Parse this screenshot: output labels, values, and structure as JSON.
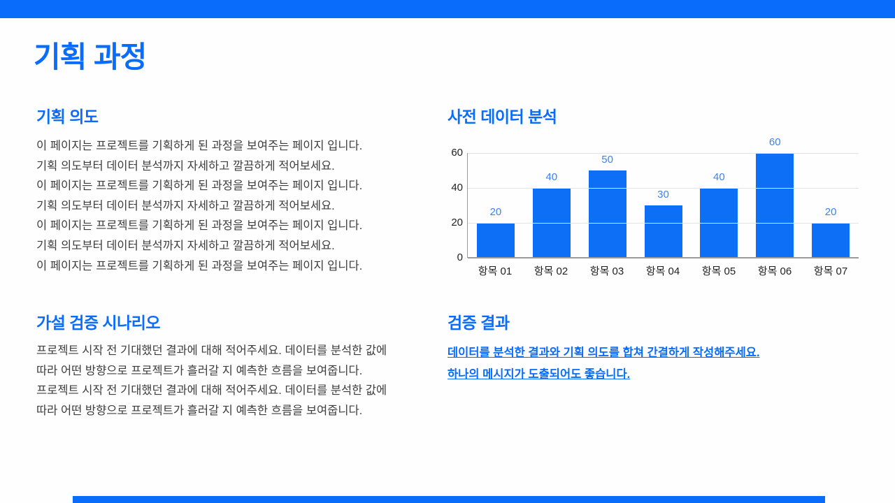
{
  "slide": {
    "title": "기획 과정"
  },
  "colors": {
    "accent": "#0a6cfa",
    "bar": "#0d6ef6",
    "value_label": "#3b82f4",
    "body_text": "#3d3d3d"
  },
  "sections": {
    "planning_intent": {
      "heading": "기획 의도",
      "lines": [
        "이 페이지는 프로젝트를 기획하게 된 과정을 보여주는 페이지 입니다.",
        "기획 의도부터 데이터 분석까지 자세하고 깔끔하게 적어보세요.",
        "이 페이지는 프로젝트를 기획하게 된 과정을 보여주는 페이지 입니다.",
        "기획 의도부터 데이터 분석까지 자세하고 깔끔하게 적어보세요.",
        "이 페이지는 프로젝트를 기획하게 된 과정을 보여주는 페이지 입니다.",
        "기획 의도부터 데이터 분석까지 자세하고 깔끔하게 적어보세요.",
        "이 페이지는 프로젝트를 기획하게 된 과정을 보여주는 페이지 입니다."
      ]
    },
    "data_analysis": {
      "heading": "사전 데이터 분석"
    },
    "hypothesis": {
      "heading": "가설 검증 시나리오",
      "lines": [
        "프로젝트 시작 전 기대했던 결과에 대해 적어주세요. 데이터를 분석한 값에",
        "따라 어떤 방향으로 프로젝트가 흘러갈 지 예측한 흐름을 보여줍니다.",
        "프로젝트 시작 전 기대했던 결과에 대해 적어주세요. 데이터를 분석한 값에",
        "따라 어떤 방향으로 프로젝트가 흘러갈 지 예측한 흐름을 보여줍니다."
      ]
    },
    "result": {
      "heading": "검증 결과",
      "links": [
        "데이터를 분석한 결과와 기획 의도를 합쳐 간결하게 작성해주세요.",
        "하나의 메시지가 도출되어도 좋습니다."
      ]
    }
  },
  "chart_data": {
    "type": "bar",
    "title": "사전 데이터 분석",
    "categories": [
      "항목 01",
      "항목 02",
      "항목 03",
      "항목 04",
      "항목 05",
      "항목 06",
      "항목 07"
    ],
    "values": [
      20,
      40,
      50,
      30,
      40,
      60,
      20
    ],
    "xlabel": "",
    "ylabel": "",
    "yticks": [
      0,
      20,
      40,
      60
    ],
    "ylim": [
      0,
      60
    ],
    "grid": true,
    "legend": false,
    "bar_color": "#0d6ef6",
    "value_label_color": "#3b82f4"
  }
}
